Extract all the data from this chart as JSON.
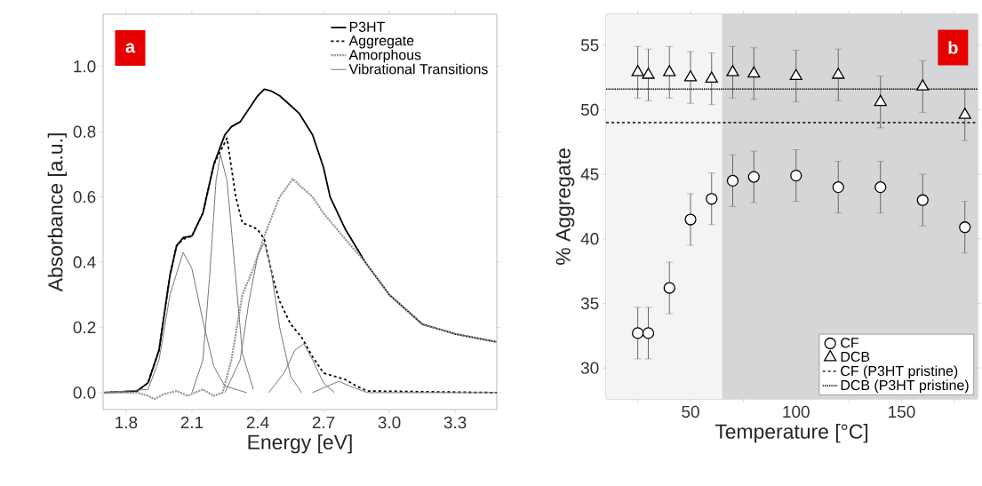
{
  "chart_data": [
    {
      "type": "line",
      "xlabel": "Energy [eV]",
      "ylabel": "Absorbance [a.u.]",
      "annotations": [
        "a"
      ],
      "xlim": [
        1.695,
        3.49
      ],
      "ylim": [
        -0.052,
        1.16
      ],
      "xticks": [
        1.8,
        2.1,
        2.4,
        2.7,
        {
          "value": 3,
          "label": "3.0"
        },
        3.3
      ],
      "yticks": [
        {
          "value": 0,
          "label": "0.0"
        },
        0.2,
        0.4,
        0.6,
        0.8,
        {
          "value": 1,
          "label": "1.0"
        }
      ],
      "legend": "top right",
      "series": [
        {
          "name": "P3HT",
          "color": "#000000",
          "line_style": "solid",
          "x": [
            1.7,
            1.85,
            1.9,
            1.95,
            2.0,
            2.03,
            2.06,
            2.1,
            2.15,
            2.2,
            2.25,
            2.28,
            2.32,
            2.36,
            2.4,
            2.43,
            2.46,
            2.5,
            2.55,
            2.59,
            2.65,
            2.7,
            2.73,
            2.8,
            2.89,
            3.0,
            3.1,
            3.15,
            3.2,
            3.3,
            3.49
          ],
          "values": [
            0,
            0.005,
            0.03,
            0.13,
            0.36,
            0.45,
            0.475,
            0.48,
            0.55,
            0.7,
            0.79,
            0.815,
            0.83,
            0.87,
            0.91,
            0.93,
            0.925,
            0.91,
            0.88,
            0.855,
            0.79,
            0.69,
            0.6,
            0.5,
            0.4,
            0.3,
            0.24,
            0.21,
            0.2,
            0.18,
            0.155
          ]
        },
        {
          "name": "Aggregate",
          "color": "#000000",
          "line_style": "dashed",
          "x": [
            1.7,
            1.85,
            1.9,
            1.95,
            2.0,
            2.03,
            2.06,
            2.1,
            2.15,
            2.2,
            2.26,
            2.3,
            2.33,
            2.37,
            2.4,
            2.43,
            2.47,
            2.5,
            2.55,
            2.6,
            2.65,
            2.7,
            2.8,
            2.85,
            2.9,
            3.49
          ],
          "values": [
            0,
            0.005,
            0.03,
            0.13,
            0.36,
            0.45,
            0.47,
            0.48,
            0.55,
            0.7,
            0.78,
            0.6,
            0.52,
            0.51,
            0.5,
            0.47,
            0.35,
            0.28,
            0.21,
            0.17,
            0.11,
            0.06,
            0.04,
            0.02,
            0.005,
            0
          ]
        },
        {
          "name": "Amorphous",
          "color": "#999999",
          "line_style": "dotted",
          "x": [
            1.7,
            1.85,
            1.9,
            1.93,
            1.97,
            2.03,
            2.08,
            2.15,
            2.2,
            2.24,
            2.28,
            2.33,
            2.38,
            2.43,
            2.5,
            2.56,
            2.6,
            2.65,
            2.7,
            2.8,
            2.89,
            3.0,
            3.1,
            3.15,
            3.2,
            3.3,
            3.49
          ],
          "values": [
            0,
            0,
            -0.01,
            -0.02,
            -0.005,
            0.005,
            -0.01,
            0.01,
            -0.01,
            0,
            0.1,
            0.3,
            0.38,
            0.48,
            0.6,
            0.655,
            0.63,
            0.6,
            0.55,
            0.47,
            0.4,
            0.3,
            0.24,
            0.21,
            0.2,
            0.18,
            0.155
          ]
        },
        {
          "name": "Vibrational Transitions",
          "color": "#777777",
          "line_style": "solid",
          "x": [
            1.7,
            1.9,
            1.95,
            2.0,
            2.06,
            2.1,
            2.15,
            2.2,
            2.25,
            2.35
          ],
          "values": [
            0,
            0.01,
            0.1,
            0.3,
            0.43,
            0.38,
            0.22,
            0.08,
            0.02,
            0
          ]
        },
        {
          "color": "#777777",
          "line_style": "solid",
          "x": [
            2.1,
            2.15,
            2.18,
            2.21,
            2.23,
            2.26,
            2.3,
            2.33,
            2.38
          ],
          "values": [
            0,
            0.1,
            0.35,
            0.65,
            0.73,
            0.65,
            0.35,
            0.12,
            0.01
          ]
        },
        {
          "color": "#777777",
          "line_style": "solid",
          "x": [
            2.25,
            2.32,
            2.36,
            2.4,
            2.43,
            2.46,
            2.5,
            2.55,
            2.6
          ],
          "values": [
            0,
            0.1,
            0.28,
            0.42,
            0.46,
            0.38,
            0.2,
            0.05,
            0
          ]
        },
        {
          "color": "#777777",
          "line_style": "solid",
          "x": [
            2.45,
            2.52,
            2.57,
            2.61,
            2.65,
            2.7,
            2.75
          ],
          "values": [
            0,
            0.06,
            0.13,
            0.15,
            0.1,
            0.03,
            0
          ]
        },
        {
          "color": "#777777",
          "line_style": "solid",
          "x": [
            2.65,
            2.72,
            2.77,
            2.82,
            2.9,
            3.49
          ],
          "values": [
            0,
            0.02,
            0.035,
            0.02,
            0,
            0
          ]
        }
      ]
    },
    {
      "type": "scatter",
      "xlabel": "Temperature [°C]",
      "ylabel": "% Aggregate",
      "annotations": [
        "b"
      ],
      "xlim": [
        10,
        186
      ],
      "ylim": [
        27.6,
        57.4
      ],
      "xticks": [
        {
          "value": 25,
          "label": null
        },
        50,
        {
          "value": 75,
          "label": null
        },
        100,
        {
          "value": 125,
          "label": null
        },
        150,
        {
          "value": 175,
          "label": null
        }
      ],
      "yticks": [
        30,
        35,
        40,
        45,
        50,
        55
      ],
      "legend": "bottom right",
      "x": [
        25,
        30,
        40,
        50,
        60,
        70,
        80,
        100,
        120,
        140,
        160,
        180
      ],
      "bands": [
        {
          "axis": "x",
          "from": 10,
          "to": 65,
          "color": "#f4f4f4"
        },
        {
          "axis": "x",
          "from": 65,
          "to": 186,
          "color": "#d4d6d8"
        }
      ],
      "ref_lines": [
        {
          "axis": "y",
          "value": 49.0,
          "label": "CF (P3HT pristine)",
          "line_style": "dashed",
          "color": "#000000"
        },
        {
          "axis": "y",
          "value": 51.6,
          "label": "DCB (P3HT pristine)",
          "line_style": "dotted",
          "color": "#000000"
        }
      ],
      "series": [
        {
          "name": "CF",
          "color": "#000000",
          "marker": "circle",
          "values": [
            32.7,
            32.7,
            36.2,
            41.5,
            43.1,
            44.5,
            44.8,
            44.9,
            44.0,
            44.0,
            43.0,
            40.9
          ],
          "errors": [
            2,
            2,
            2,
            2,
            2,
            2,
            2,
            2,
            2,
            2,
            2,
            2
          ]
        },
        {
          "name": "DCB",
          "color": "#000000",
          "marker": "triangle",
          "values": [
            52.9,
            52.7,
            52.9,
            52.5,
            52.4,
            52.9,
            52.8,
            52.6,
            52.7,
            50.6,
            51.8,
            49.6
          ],
          "errors": [
            2,
            2,
            2,
            2,
            2,
            2,
            2,
            2,
            2,
            2,
            2,
            2
          ]
        }
      ]
    }
  ]
}
